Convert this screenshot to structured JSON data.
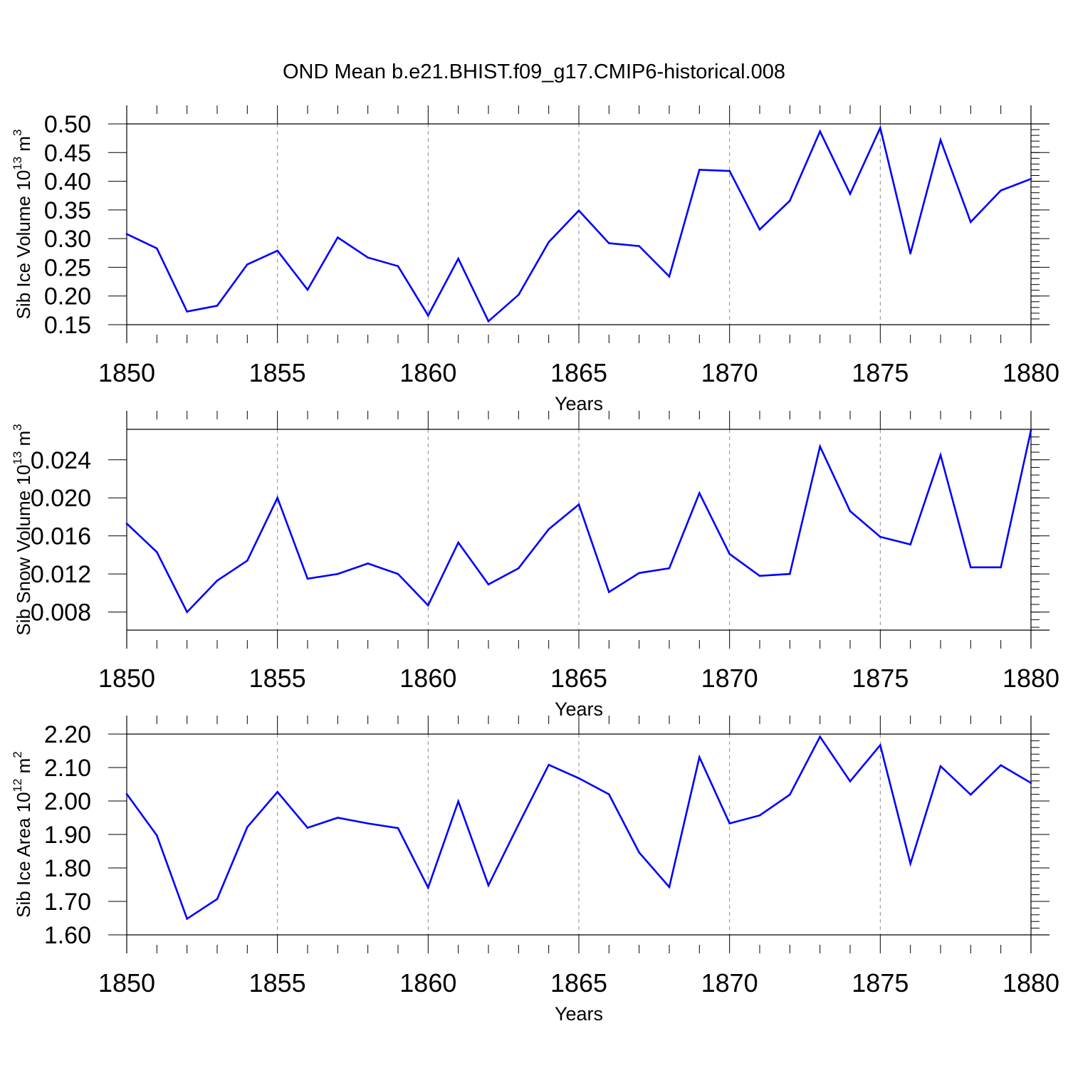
{
  "title": "OND Mean b.e21.BHIST.f09_g17.CMIP6-historical.008",
  "chart_data": [
    {
      "type": "line",
      "name": "ice-volume",
      "ylabel": {
        "prefix": "Sib Ice Volume 10",
        "exp": "13",
        "unit": " m",
        "unit_exp": "3"
      },
      "xlabel": "Years",
      "xlim": [
        1850,
        1880
      ],
      "ylim": [
        0.15,
        0.5
      ],
      "xticks": [
        "1850",
        "1855",
        "1860",
        "1865",
        "1870",
        "1875",
        "1880"
      ],
      "yticks": [
        "0.15",
        "0.20",
        "0.25",
        "0.30",
        "0.35",
        "0.40",
        "0.45",
        "0.50"
      ],
      "series": [
        {
          "name": "Sib Ice Volume",
          "color": "#0000ff",
          "x": [
            1850,
            1851,
            1852,
            1853,
            1854,
            1855,
            1856,
            1857,
            1858,
            1859,
            1860,
            1861,
            1862,
            1863,
            1864,
            1865,
            1866,
            1867,
            1868,
            1869,
            1870,
            1871,
            1872,
            1873,
            1874,
            1875,
            1876,
            1877,
            1878,
            1879,
            1880
          ],
          "values": [
            0.308,
            0.283,
            0.173,
            0.183,
            0.255,
            0.279,
            0.211,
            0.302,
            0.267,
            0.252,
            0.166,
            0.265,
            0.156,
            0.202,
            0.294,
            0.349,
            0.292,
            0.287,
            0.234,
            0.42,
            0.418,
            0.316,
            0.366,
            0.487,
            0.378,
            0.493,
            0.274,
            0.472,
            0.329,
            0.384,
            0.404
          ]
        }
      ]
    },
    {
      "type": "line",
      "name": "snow-volume",
      "ylabel": {
        "prefix": "Sib Snow Volume 10",
        "exp": "13",
        "unit": " m",
        "unit_exp": "3"
      },
      "xlabel": "Years",
      "xlim": [
        1850,
        1880
      ],
      "ylim": [
        0.0061,
        0.0272
      ],
      "xticks": [
        "1850",
        "1855",
        "1860",
        "1865",
        "1870",
        "1875",
        "1880"
      ],
      "yticks": [
        "0.008",
        "0.012",
        "0.016",
        "0.020",
        "0.024"
      ],
      "series": [
        {
          "name": "Sib Snow Volume",
          "color": "#0000ff",
          "x": [
            1850,
            1851,
            1852,
            1853,
            1854,
            1855,
            1856,
            1857,
            1858,
            1859,
            1860,
            1861,
            1862,
            1863,
            1864,
            1865,
            1866,
            1867,
            1868,
            1869,
            1870,
            1871,
            1872,
            1873,
            1874,
            1875,
            1876,
            1877,
            1878,
            1879,
            1880
          ],
          "values": [
            0.0173,
            0.0143,
            0.008,
            0.0113,
            0.0134,
            0.02,
            0.0115,
            0.012,
            0.0131,
            0.012,
            0.0087,
            0.0153,
            0.0109,
            0.0126,
            0.0167,
            0.0193,
            0.0101,
            0.0121,
            0.0126,
            0.0205,
            0.0141,
            0.0118,
            0.012,
            0.0254,
            0.0186,
            0.0159,
            0.0151,
            0.0245,
            0.0127,
            0.0127,
            0.0271
          ]
        }
      ]
    },
    {
      "type": "line",
      "name": "ice-area",
      "ylabel": {
        "prefix": "Sib Ice Area 10",
        "exp": "12",
        "unit": " m",
        "unit_exp": "2"
      },
      "xlabel": "Years",
      "xlim": [
        1850,
        1880
      ],
      "ylim": [
        1.6,
        2.2
      ],
      "xticks": [
        "1850",
        "1855",
        "1860",
        "1865",
        "1870",
        "1875",
        "1880"
      ],
      "yticks": [
        "1.60",
        "1.70",
        "1.80",
        "1.90",
        "2.00",
        "2.10",
        "2.20"
      ],
      "series": [
        {
          "name": "Sib Ice Area",
          "color": "#0000ff",
          "x": [
            1850,
            1851,
            1852,
            1853,
            1854,
            1855,
            1856,
            1857,
            1858,
            1859,
            1860,
            1861,
            1862,
            1863,
            1864,
            1865,
            1866,
            1867,
            1868,
            1869,
            1870,
            1871,
            1872,
            1873,
            1874,
            1875,
            1876,
            1877,
            1878,
            1879,
            1880
          ],
          "values": [
            2.021,
            1.897,
            1.648,
            1.707,
            1.922,
            2.027,
            1.92,
            1.95,
            1.933,
            1.919,
            1.741,
            1.999,
            1.748,
            1.93,
            2.108,
            2.068,
            2.02,
            1.846,
            1.743,
            2.131,
            1.933,
            1.957,
            2.019,
            2.192,
            2.059,
            2.167,
            1.813,
            2.104,
            2.019,
            2.107,
            2.054
          ]
        }
      ]
    }
  ]
}
